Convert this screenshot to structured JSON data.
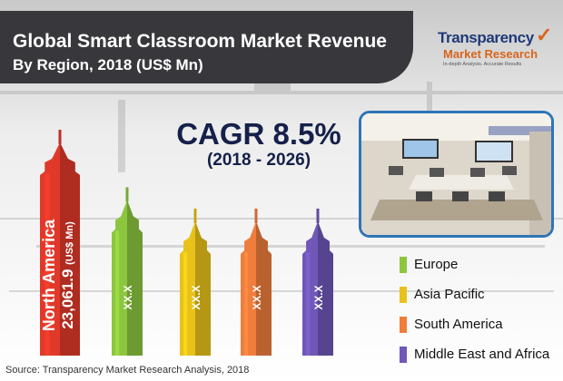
{
  "header": {
    "title_line1": "Global Smart Classroom Market Revenue",
    "title_line2": "By Region, 2018 (US$ Mn)"
  },
  "logo": {
    "line1": "Transparency",
    "line2": "Market Research",
    "line3": "In-depth Analysis. Accurate Results"
  },
  "cagr": {
    "value": "CAGR 8.5%",
    "period": "(2018 - 2026)"
  },
  "source": "Source: Transparency Market Research Analysis, 2018",
  "chart_data": {
    "type": "bar",
    "title": "Global Smart Classroom Market Revenue By Region, 2018 (US$ Mn)",
    "year": 2018,
    "unit": "US$ Mn",
    "categories": [
      "North America",
      "Europe",
      "Asia Pacific",
      "South America",
      "Middle East and Africa"
    ],
    "values": [
      23061.9,
      null,
      null,
      null,
      null
    ],
    "value_labels": [
      "23,061.9 (US$ Mn)",
      "XX.X",
      "XX.X",
      "XX.X",
      "XX.X"
    ],
    "colors": [
      "#e0392a",
      "#8cc63f",
      "#e8c21a",
      "#ef7d3c",
      "#7057b8"
    ],
    "relative_heights": [
      1.0,
      0.73,
      0.63,
      0.63,
      0.63
    ],
    "legend": [
      "Europe",
      "Asia Pacific",
      "South America",
      "Middle East and Africa"
    ],
    "legend_position": "right",
    "cagr": "8.5%",
    "cagr_period": "(2018 - 2026)"
  }
}
